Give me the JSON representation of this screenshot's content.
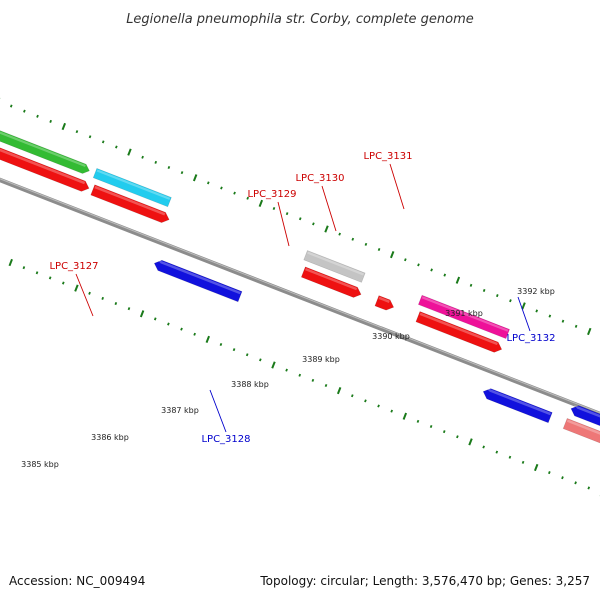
{
  "title": "Legionella pneumophila str. Corby, complete genome",
  "accession": "Accession: NC_009494",
  "stats": "Topology: circular; Length: 3,576,470 bp; Genes: 3,257",
  "colors": {
    "backbone": "#8c8c8c",
    "ticks": "#1a7a1a",
    "plus_label": "#cc0000",
    "minus_label": "#0000cc"
  },
  "scale_labels": [
    "3385 kbp",
    "3386 kbp",
    "3387 kbp",
    "3388 kbp",
    "3389 kbp",
    "3390 kbp",
    "3391 kbp",
    "3392 kbp"
  ],
  "genes": [
    {
      "id": "green-left",
      "color": "#33bb33",
      "label": ""
    },
    {
      "id": "red-left",
      "color": "#ee1111",
      "label": ""
    },
    {
      "id": "LPC_3127",
      "color": "#22ccee",
      "label": "LPC_3127"
    },
    {
      "id": "red-3127",
      "color": "#ee1111",
      "label": ""
    },
    {
      "id": "LPC_3128",
      "color": "#1111dd",
      "label": "LPC_3128"
    },
    {
      "id": "LPC_3129",
      "color": "#c4c4c4",
      "label": "LPC_3129"
    },
    {
      "id": "red-3129",
      "color": "#ee1111",
      "label": ""
    },
    {
      "id": "LPC_3130",
      "color": "#ee1111",
      "label": "LPC_3130"
    },
    {
      "id": "LPC_3131",
      "color": "#ee1199",
      "label": "LPC_3131"
    },
    {
      "id": "red-3131",
      "color": "#ee1111",
      "label": ""
    },
    {
      "id": "LPC_3132",
      "color": "#1111dd",
      "label": "LPC_3132"
    },
    {
      "id": "pink-right",
      "color": "#ee7777",
      "label": ""
    },
    {
      "id": "blue-right",
      "color": "#1111dd",
      "label": ""
    }
  ]
}
